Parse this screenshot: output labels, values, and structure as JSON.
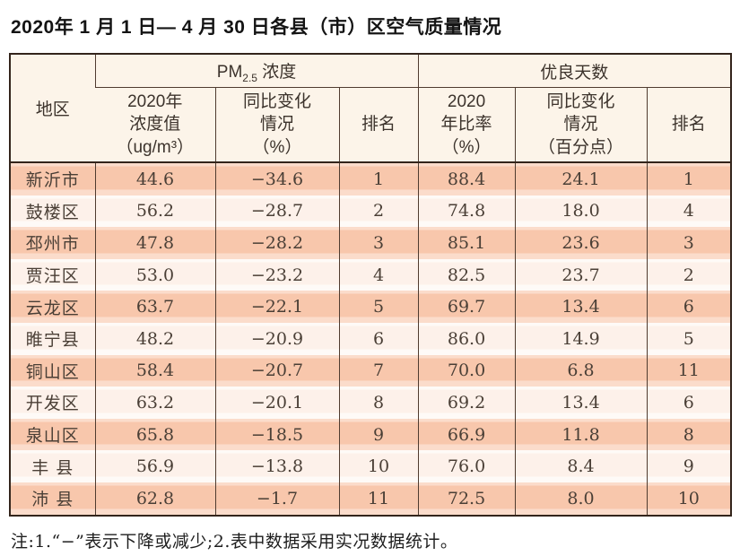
{
  "title": "2020年 1 月 1 日— 4 月 30 日各县（市）区空气质量情况",
  "table": {
    "corner": "地区",
    "pm_group": {
      "prefix": "PM",
      "subscript": "2.5",
      "suffix": " 浓度"
    },
    "good_group": "优良天数",
    "sub_headers": {
      "pm_value": "2020年\n浓度值\n（ug/m³）",
      "pm_change": "同比变化\n情况\n（%）",
      "pm_rank": "排名",
      "good_rate": "2020\n年比率\n（%）",
      "good_change": "同比变化\n情况\n（百分点）",
      "good_rank": "排名"
    },
    "row_fields": [
      "region",
      "pm_value",
      "pm_change",
      "pm_rank",
      "good_rate",
      "good_change",
      "good_rank"
    ],
    "rows": [
      {
        "region": "新沂市",
        "pm_value": "44.6",
        "pm_change": "−34.6",
        "pm_rank": "1",
        "good_rate": "88.4",
        "good_change": "24.1",
        "good_rank": "1"
      },
      {
        "region": "鼓楼区",
        "pm_value": "56.2",
        "pm_change": "−28.7",
        "pm_rank": "2",
        "good_rate": "74.8",
        "good_change": "18.0",
        "good_rank": "4"
      },
      {
        "region": "邳州市",
        "pm_value": "47.8",
        "pm_change": "−28.2",
        "pm_rank": "3",
        "good_rate": "85.1",
        "good_change": "23.6",
        "good_rank": "3"
      },
      {
        "region": "贾汪区",
        "pm_value": "53.0",
        "pm_change": "−23.2",
        "pm_rank": "4",
        "good_rate": "82.5",
        "good_change": "23.7",
        "good_rank": "2"
      },
      {
        "region": "云龙区",
        "pm_value": "63.7",
        "pm_change": "−22.1",
        "pm_rank": "5",
        "good_rate": "69.7",
        "good_change": "13.4",
        "good_rank": "6"
      },
      {
        "region": "睢宁县",
        "pm_value": "48.2",
        "pm_change": "−20.9",
        "pm_rank": "6",
        "good_rate": "86.0",
        "good_change": "14.9",
        "good_rank": "5"
      },
      {
        "region": "铜山区",
        "pm_value": "58.4",
        "pm_change": "−20.7",
        "pm_rank": "7",
        "good_rate": "70.0",
        "good_change": "6.8",
        "good_rank": "11"
      },
      {
        "region": "开发区",
        "pm_value": "63.2",
        "pm_change": "−20.1",
        "pm_rank": "8",
        "good_rate": "69.2",
        "good_change": "13.4",
        "good_rank": "6"
      },
      {
        "region": "泉山区",
        "pm_value": "65.8",
        "pm_change": "−18.5",
        "pm_rank": "9",
        "good_rate": "66.9",
        "good_change": "11.8",
        "good_rank": "8"
      },
      {
        "region": "丰 县",
        "pm_value": "56.9",
        "pm_change": "−13.8",
        "pm_rank": "10",
        "good_rate": "76.0",
        "good_change": "8.4",
        "good_rank": "9"
      },
      {
        "region": "沛 县",
        "pm_value": "62.8",
        "pm_change": "−1.7",
        "pm_rank": "11",
        "good_rate": "72.5",
        "good_change": "8.0",
        "good_rank": "10"
      }
    ]
  },
  "note": "注:1.“−”表示下降或减少;2.表中数据采用实况数据统计。",
  "colors": {
    "row_salmon": "#f8c7ac",
    "row_light": "#fdf1ea",
    "header_cream": "#fcf4e9",
    "border_dark": "#33241b"
  }
}
